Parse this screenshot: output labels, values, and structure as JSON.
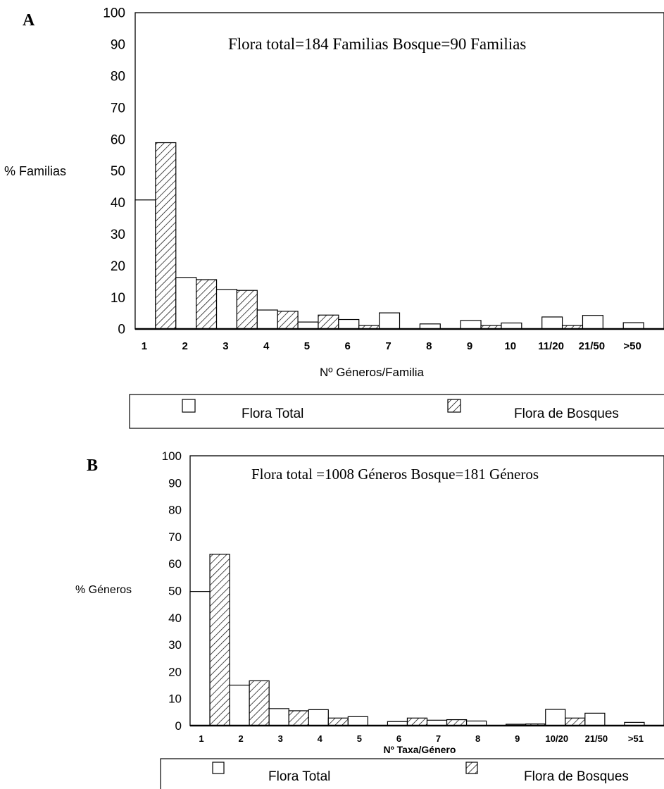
{
  "chart_data": [
    {
      "panel": "A",
      "type": "bar",
      "annotation": "Flora total=184 Familias  Bosque=90 Familias",
      "xlabel": "Nº Géneros/Familia",
      "ylabel": "% Familias",
      "categories": [
        "1",
        "2",
        "3",
        "4",
        "5",
        "6",
        "7",
        "8",
        "9",
        "10",
        "11/20",
        "21/50",
        ">50"
      ],
      "yticks": [
        "0",
        "10",
        "20",
        "30",
        "40",
        "50",
        "60",
        "70",
        "80",
        "90",
        "100"
      ],
      "ylim": [
        0,
        100
      ],
      "series": [
        {
          "name": "Flora Total",
          "values": [
            40.8,
            16.3,
            12.5,
            6.0,
            2.2,
            3.0,
            5.1,
            1.6,
            2.7,
            1.9,
            3.8,
            4.3,
            2.0
          ]
        },
        {
          "name": "Flora de Bosques",
          "values": [
            58.9,
            15.6,
            12.2,
            5.6,
            4.4,
            1.1,
            0.0,
            0.0,
            1.1,
            0.0,
            1.1,
            0.0,
            0.0
          ]
        }
      ],
      "legend": "bottom"
    },
    {
      "panel": "B",
      "type": "bar",
      "annotation": "Flora total =1008 Géneros  Bosque=181 Géneros",
      "xlabel": "Nº Taxa/Género",
      "ylabel": "% Géneros",
      "categories": [
        "1",
        "2",
        "3",
        "4",
        "5",
        "6",
        "7",
        "8",
        "9",
        "10/20",
        "21/50",
        ">51"
      ],
      "yticks": [
        "0",
        "10",
        "20",
        "30",
        "40",
        "50",
        "60",
        "70",
        "80",
        "90",
        "100"
      ],
      "ylim": [
        0,
        100
      ],
      "series": [
        {
          "name": "Flora Total",
          "values": [
            49.7,
            15.0,
            6.3,
            5.9,
            3.3,
            1.5,
            2.0,
            1.7,
            0.5,
            6.0,
            4.6,
            1.2
          ]
        },
        {
          "name": "Flora de Bosques",
          "values": [
            63.5,
            16.6,
            5.5,
            2.8,
            0.0,
            2.8,
            2.2,
            0.0,
            0.6,
            2.8,
            0.0,
            0.0
          ]
        }
      ],
      "legend": "bottom"
    }
  ],
  "panels": {
    "a_letter": "A",
    "b_letter": "B"
  },
  "legend": {
    "label_total": "Flora Total",
    "label_bosques": "Flora de Bosques"
  },
  "colors": {
    "ink": "#000000",
    "fill_total": "#ffffff",
    "hatch": "#000000"
  }
}
